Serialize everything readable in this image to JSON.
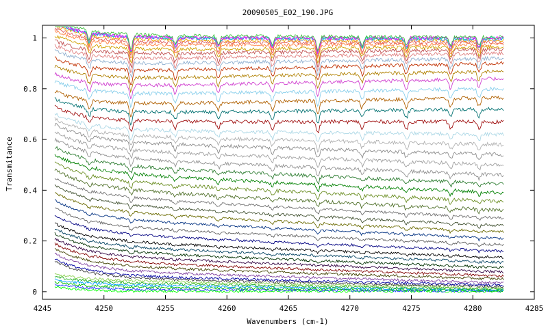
{
  "chart_data": {
    "type": "line",
    "title": "20090505_E02_190.JPG",
    "xlabel": "Wavenumbers (cm-1)",
    "ylabel": "Transmitance",
    "xlim": [
      4245,
      4285
    ],
    "ylim": [
      -0.03,
      1.05
    ],
    "x_ticks": [
      "4245",
      "4250",
      "4255",
      "4260",
      "4265",
      "4270",
      "4275",
      "4280",
      "4285"
    ],
    "y_ticks": [
      "0",
      "0.2",
      "0.4",
      "0.6",
      "0.8",
      "1"
    ],
    "x_range": [
      4246.0,
      4282.5
    ],
    "grid": false,
    "legend": "none",
    "absorption_lines_x": [
      4248.8,
      4252.2,
      4255.8,
      4259.3,
      4263.7,
      4267.4,
      4271.0,
      4274.6,
      4278.2,
      4280.5
    ],
    "series": [
      {
        "color": "#00ff00",
        "start": 0.0,
        "end": 0.002
      },
      {
        "color": "#1f3fff",
        "start": 0.01,
        "end": 0.003
      },
      {
        "color": "#00c000",
        "start": 0.02,
        "end": 0.005
      },
      {
        "color": "#00a0ff",
        "start": 0.03,
        "end": 0.007
      },
      {
        "color": "#20b020",
        "start": 0.04,
        "end": 0.01
      },
      {
        "color": "#8ad050",
        "start": 0.05,
        "end": 0.014
      },
      {
        "color": "#404040",
        "start": 0.06,
        "end": 0.02
      },
      {
        "color": "#0000a0",
        "start": 0.07,
        "end": 0.026
      },
      {
        "color": "#8040a0",
        "start": 0.09,
        "end": 0.035
      },
      {
        "color": "#404000",
        "start": 0.11,
        "end": 0.05
      },
      {
        "color": "#800000",
        "start": 0.13,
        "end": 0.062
      },
      {
        "color": "#300040",
        "start": 0.15,
        "end": 0.078
      },
      {
        "color": "#003000",
        "start": 0.17,
        "end": 0.095
      },
      {
        "color": "#004060",
        "start": 0.19,
        "end": 0.115
      },
      {
        "color": "#000000",
        "start": 0.21,
        "end": 0.135
      },
      {
        "color": "#000080",
        "start": 0.24,
        "end": 0.16
      },
      {
        "color": "#606060",
        "start": 0.27,
        "end": 0.185
      },
      {
        "color": "#003080",
        "start": 0.3,
        "end": 0.21
      },
      {
        "color": "#6a6a00",
        "start": 0.33,
        "end": 0.235
      },
      {
        "color": "#405030",
        "start": 0.36,
        "end": 0.26
      },
      {
        "color": "#707070",
        "start": 0.39,
        "end": 0.29
      },
      {
        "color": "#50702a",
        "start": 0.42,
        "end": 0.32
      },
      {
        "color": "#6b8e23",
        "start": 0.45,
        "end": 0.355
      },
      {
        "color": "#008000",
        "start": 0.48,
        "end": 0.39
      },
      {
        "color": "#2e7d32",
        "start": 0.51,
        "end": 0.425
      },
      {
        "color": "#909090",
        "start": 0.54,
        "end": 0.46
      },
      {
        "color": "#a0a0a0",
        "start": 0.57,
        "end": 0.5
      },
      {
        "color": "#8c8c8c",
        "start": 0.6,
        "end": 0.54
      },
      {
        "color": "#b0b0b0",
        "start": 0.62,
        "end": 0.58
      },
      {
        "color": "#add8e6",
        "start": 0.64,
        "end": 0.62
      },
      {
        "color": "#a01010",
        "start": 0.67,
        "end": 0.67
      },
      {
        "color": "#007070",
        "start": 0.7,
        "end": 0.72
      },
      {
        "color": "#b06000",
        "start": 0.73,
        "end": 0.765
      },
      {
        "color": "#87ceeb",
        "start": 0.77,
        "end": 0.8
      },
      {
        "color": "#d040d0",
        "start": 0.8,
        "end": 0.84
      },
      {
        "color": "#b08000",
        "start": 0.83,
        "end": 0.87
      },
      {
        "color": "#c03000",
        "start": 0.86,
        "end": 0.9
      },
      {
        "color": "#90b0d0",
        "start": 0.89,
        "end": 0.92
      },
      {
        "color": "#e08080",
        "start": 0.91,
        "end": 0.94
      },
      {
        "color": "#c05050",
        "start": 0.93,
        "end": 0.955
      },
      {
        "color": "#d0a000",
        "start": 0.95,
        "end": 0.965
      },
      {
        "color": "#ff8040",
        "start": 0.97,
        "end": 0.975
      },
      {
        "color": "#e06060",
        "start": 0.98,
        "end": 0.983
      },
      {
        "color": "#f0a000",
        "start": 0.99,
        "end": 0.99
      },
      {
        "color": "#60a0ff",
        "start": 1.0,
        "end": 0.995
      },
      {
        "color": "#00c0c0",
        "start": 1.0,
        "end": 0.998
      },
      {
        "color": "#ff00ff",
        "start": 1.0,
        "end": 1.0
      },
      {
        "color": "#40c040",
        "start": 1.01,
        "end": 1.003
      }
    ]
  }
}
